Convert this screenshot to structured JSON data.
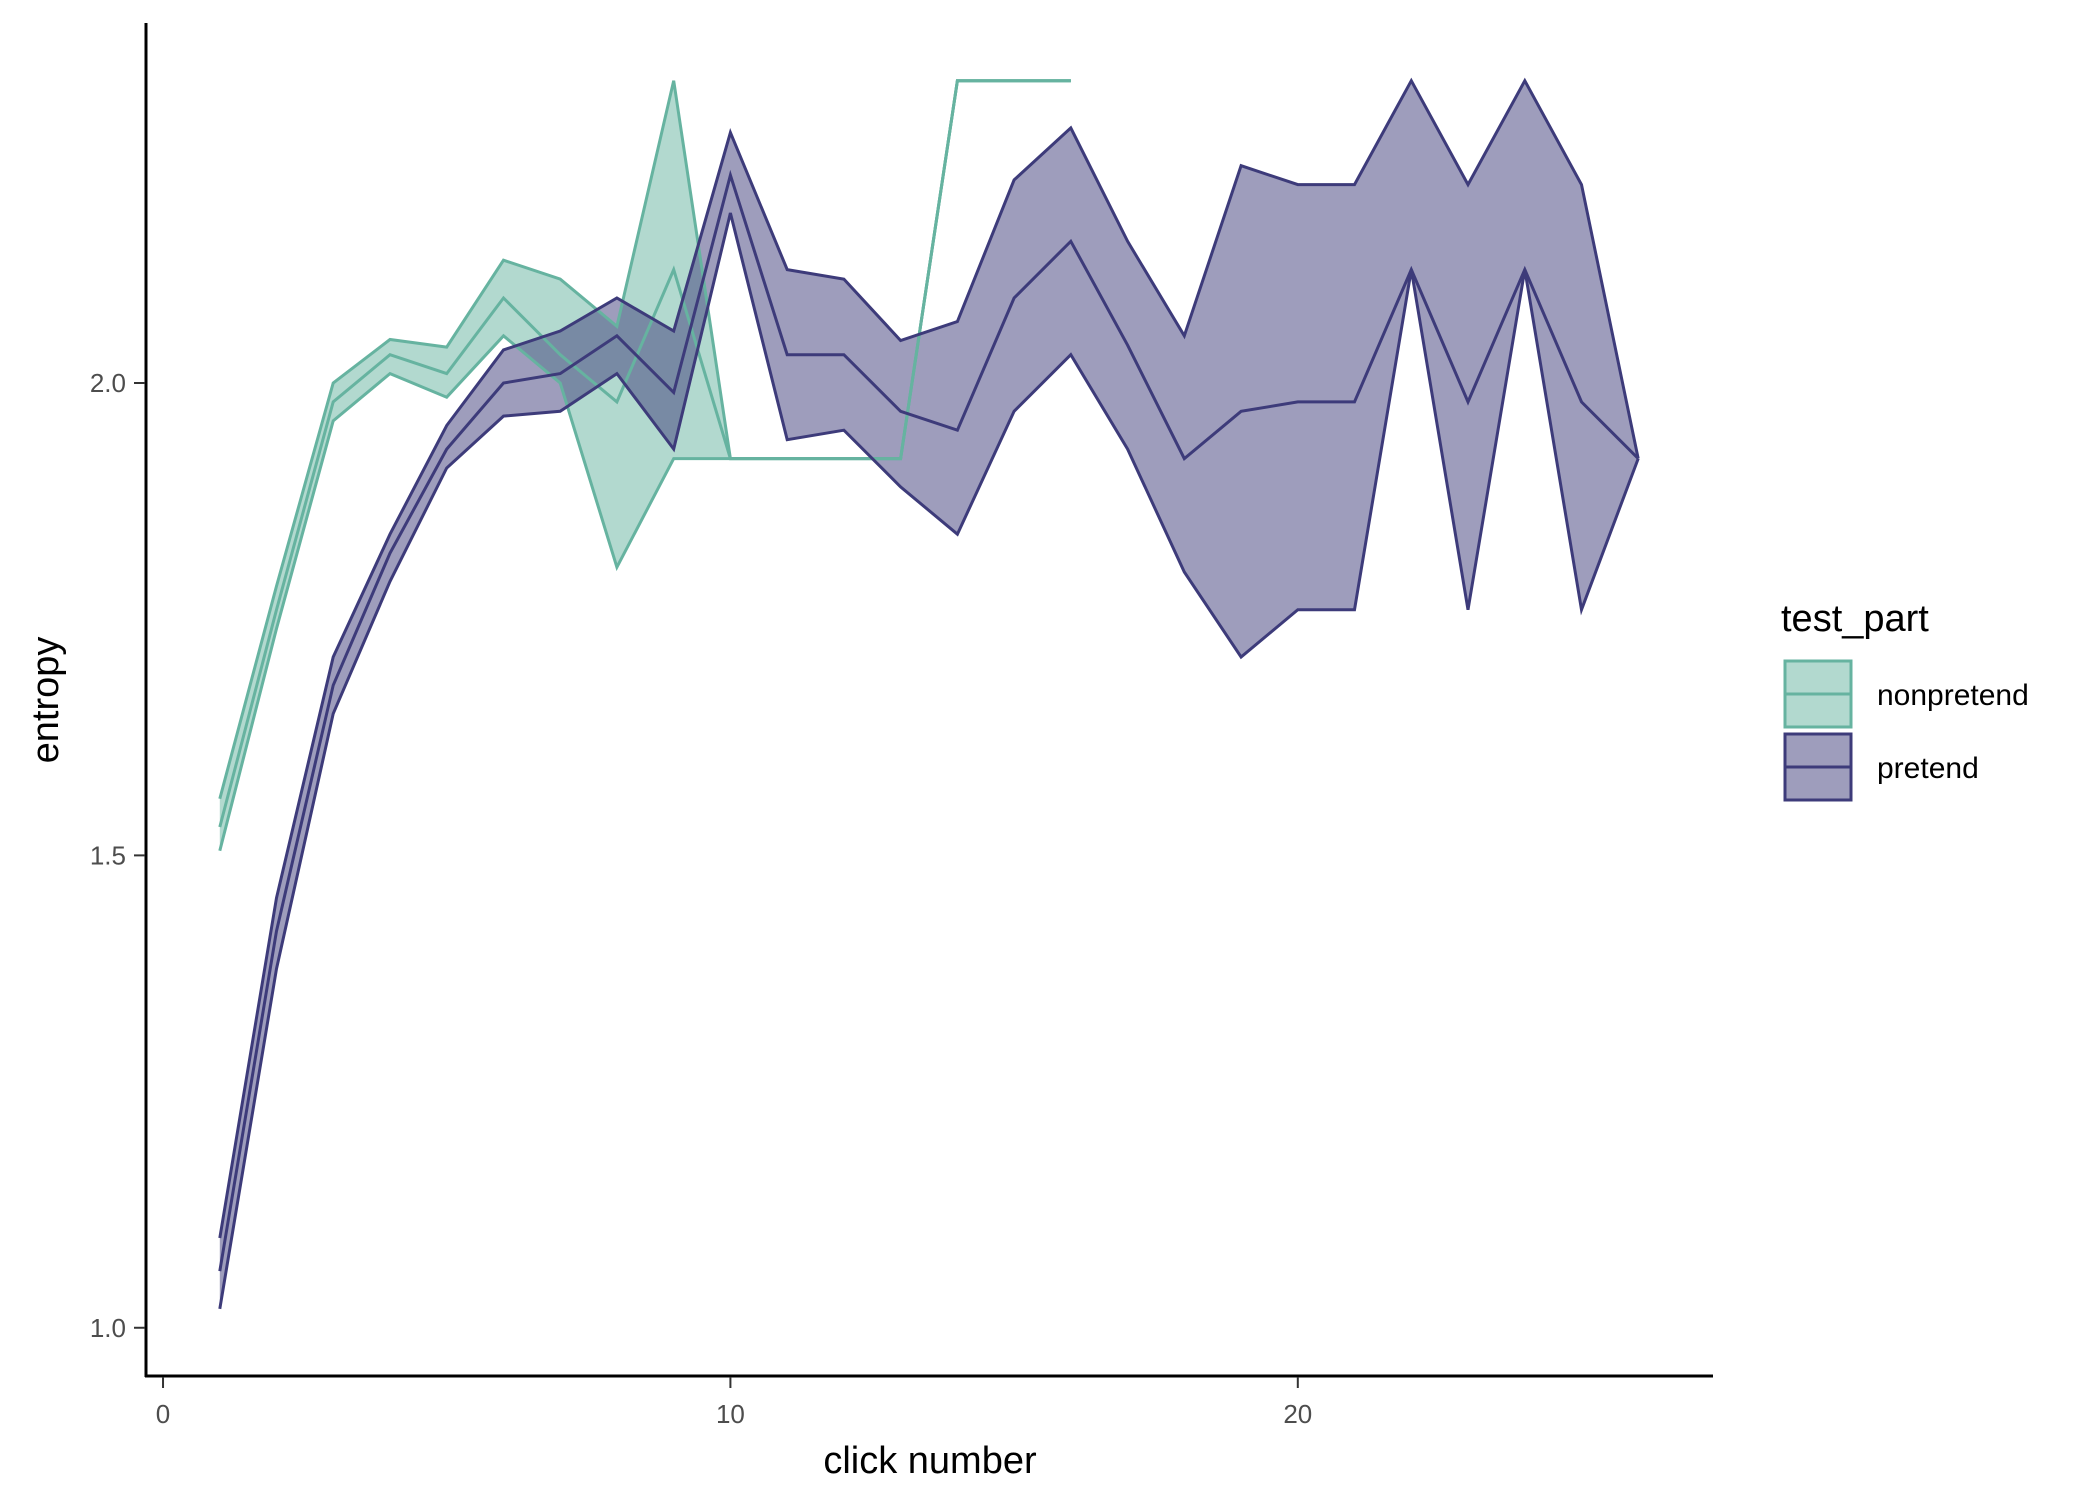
{
  "chart_data": {
    "type": "line",
    "xlabel": "click number",
    "ylabel": "entropy",
    "xlim": [
      -0.3,
      27.3
    ],
    "ylim": [
      0.95,
      2.38
    ],
    "x_ticks": [
      0,
      10,
      20
    ],
    "x_tick_labels": [
      "0",
      "10",
      "20"
    ],
    "y_ticks": [
      1.0,
      1.5,
      2.0
    ],
    "y_tick_labels": [
      "1.0",
      "1.5",
      "2.0"
    ],
    "grid": false,
    "legend": {
      "title": "test_part",
      "placement": "right",
      "entries": [
        "nonpretend",
        "pretend"
      ]
    },
    "series": [
      {
        "name": "nonpretend",
        "color": "#66b3a0",
        "fill": "#b3d9d0",
        "x": [
          1,
          2,
          3,
          4,
          5,
          6,
          7,
          8,
          9,
          10,
          11,
          12,
          13,
          14,
          15,
          16
        ],
        "y": [
          1.53,
          1.76,
          1.98,
          2.03,
          2.01,
          2.09,
          2.03,
          1.98,
          2.12,
          1.92,
          1.92,
          1.92,
          1.92,
          2.32,
          2.32,
          2.32
        ],
        "ymin": [
          1.505,
          1.74,
          1.96,
          2.01,
          1.985,
          2.05,
          2.0,
          1.805,
          1.92,
          1.92,
          1.92,
          1.92,
          1.92,
          2.32,
          2.32,
          2.32
        ],
        "ymax": [
          1.56,
          1.785,
          2.0,
          2.046,
          2.038,
          2.13,
          2.11,
          2.06,
          2.32,
          1.92,
          1.92,
          1.92,
          1.92,
          2.32,
          2.32,
          2.32
        ]
      },
      {
        "name": "pretend",
        "color": "#3d3b7a",
        "fill": "#a0a0c0",
        "x": [
          1,
          2,
          3,
          4,
          5,
          6,
          7,
          8,
          9,
          10,
          11,
          12,
          13,
          14,
          15,
          16,
          17,
          18,
          19,
          20,
          21,
          22,
          23,
          24,
          25,
          26
        ],
        "y": [
          1.06,
          1.42,
          1.68,
          1.82,
          1.93,
          2.0,
          2.01,
          2.05,
          1.99,
          2.22,
          2.03,
          2.03,
          1.97,
          1.95,
          2.09,
          2.15,
          2.04,
          1.92,
          1.97,
          1.98,
          1.98,
          2.12,
          1.98,
          2.12,
          1.98,
          1.92
        ],
        "ymin": [
          1.02,
          1.38,
          1.65,
          1.79,
          1.91,
          1.965,
          1.97,
          2.01,
          1.93,
          2.18,
          1.94,
          1.95,
          1.89,
          1.84,
          1.97,
          2.03,
          1.93,
          1.8,
          1.71,
          1.76,
          1.76,
          2.12,
          1.76,
          2.12,
          1.76,
          1.92
        ],
        "ymax": [
          1.095,
          1.455,
          1.71,
          1.84,
          1.955,
          2.035,
          2.055,
          2.09,
          2.055,
          2.265,
          2.12,
          2.11,
          2.045,
          2.065,
          2.215,
          2.27,
          2.15,
          2.05,
          2.23,
          2.21,
          2.21,
          2.32,
          2.21,
          2.32,
          2.21,
          1.92
        ]
      }
    ]
  }
}
